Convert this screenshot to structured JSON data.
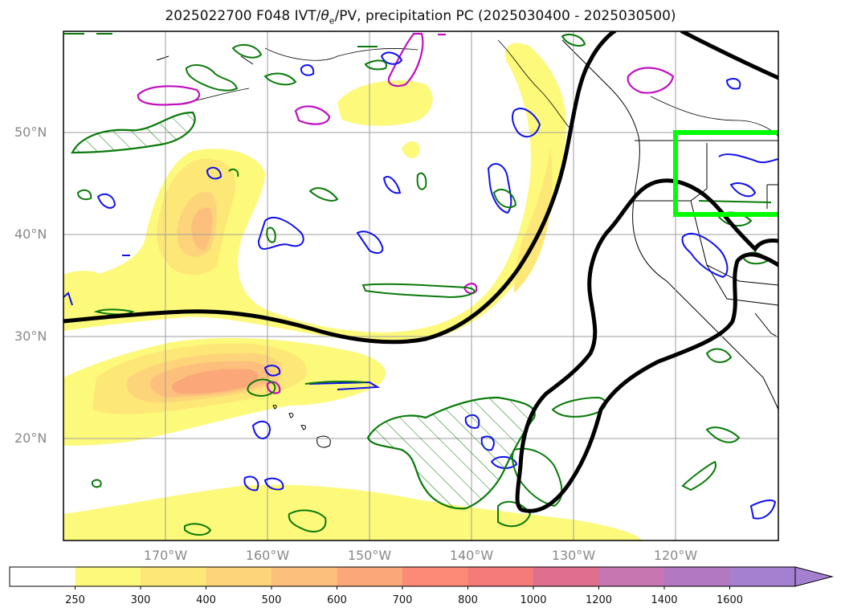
{
  "title": {
    "prefix": "2025022700 F048 IVT/",
    "symbol": "θ",
    "sub": "e",
    "suffix": "/PV, precipitation PC (2025030400 - 2025030500)"
  },
  "lat_labels": [
    "50°N",
    "40°N",
    "30°N",
    "20°N"
  ],
  "lon_labels": [
    "170°W",
    "160°W",
    "150°W",
    "140°W",
    "130°W",
    "120°W"
  ],
  "colorbar": {
    "levels": [
      "250",
      "300",
      "400",
      "500",
      "600",
      "700",
      "800",
      "1000",
      "1200",
      "1400",
      "1600"
    ],
    "colors": [
      "#ffffff",
      "#fdf97a",
      "#fde776",
      "#fdd47a",
      "#fdc07c",
      "#fca77a",
      "#fb8a76",
      "#f57a7a",
      "#e06f8f",
      "#c876b2",
      "#b279c2",
      "#a57fd0"
    ],
    "extend": "max"
  },
  "legend_colors": {
    "ivt_fill": "#fdf97a",
    "theta_e": "#0a7a0a",
    "pv": "#1010ee",
    "precip": "#c010c0",
    "ridge": "#000000",
    "box": "#00ff00"
  }
}
